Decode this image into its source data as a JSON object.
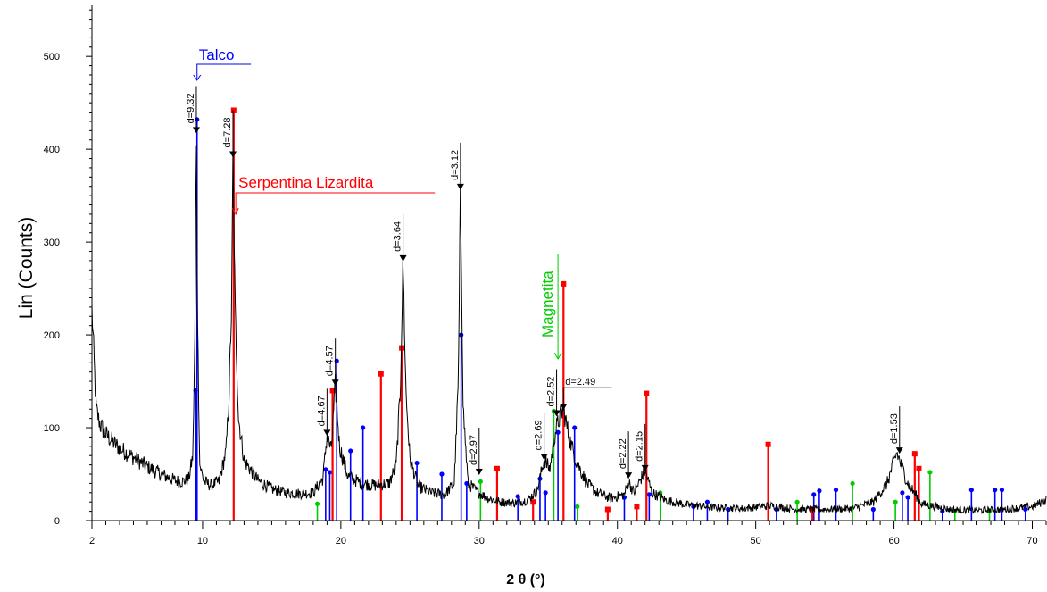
{
  "chart_data": {
    "type": "line",
    "title": "",
    "xlabel": "2 θ (°)",
    "ylabel": "Lin (Counts)",
    "xlim": [
      2,
      71
    ],
    "ylim": [
      0,
      555
    ],
    "x_ticks": [
      2,
      10,
      20,
      30,
      40,
      50,
      60,
      70
    ],
    "y_ticks": [
      0,
      100,
      200,
      300,
      400,
      500
    ],
    "grid": false,
    "colors": {
      "pattern": "#000000",
      "talco": "#0000ff",
      "serpentina": "#ff0000",
      "magnetita": "#00cc00"
    },
    "pattern_anchors": [
      [
        2.0,
        228
      ],
      [
        2.3,
        120
      ],
      [
        2.6,
        103
      ],
      [
        3,
        93
      ],
      [
        3.5,
        85
      ],
      [
        4,
        78
      ],
      [
        5,
        68
      ],
      [
        6,
        58
      ],
      [
        7,
        50
      ],
      [
        8,
        43
      ],
      [
        8.6,
        42
      ],
      [
        9.0,
        45
      ],
      [
        9.3,
        70
      ],
      [
        9.45,
        200
      ],
      [
        9.55,
        418
      ],
      [
        9.65,
        200
      ],
      [
        9.8,
        60
      ],
      [
        10.1,
        42
      ],
      [
        10.6,
        38
      ],
      [
        11.2,
        42
      ],
      [
        11.7,
        75
      ],
      [
        11.9,
        130
      ],
      [
        12.1,
        230
      ],
      [
        12.2,
        392
      ],
      [
        12.35,
        230
      ],
      [
        12.6,
        110
      ],
      [
        13,
        65
      ],
      [
        14,
        43
      ],
      [
        15,
        34
      ],
      [
        16,
        30
      ],
      [
        17,
        29
      ],
      [
        18,
        30
      ],
      [
        18.7,
        45
      ],
      [
        19.0,
        92
      ],
      [
        19.3,
        75
      ],
      [
        19.6,
        146
      ],
      [
        19.9,
        80
      ],
      [
        20.5,
        48
      ],
      [
        21.5,
        40
      ],
      [
        22.5,
        38
      ],
      [
        23.5,
        40
      ],
      [
        24.0,
        60
      ],
      [
        24.3,
        140
      ],
      [
        24.5,
        280
      ],
      [
        24.7,
        140
      ],
      [
        25.0,
        65
      ],
      [
        25.6,
        37
      ],
      [
        26.5,
        30
      ],
      [
        27.5,
        28
      ],
      [
        28.2,
        40
      ],
      [
        28.5,
        150
      ],
      [
        28.65,
        357
      ],
      [
        28.85,
        120
      ],
      [
        29.2,
        40
      ],
      [
        29.8,
        32
      ],
      [
        30.5,
        25
      ],
      [
        31.5,
        20
      ],
      [
        32.5,
        19
      ],
      [
        33.5,
        22
      ],
      [
        34.2,
        32
      ],
      [
        34.7,
        66
      ],
      [
        35.1,
        55
      ],
      [
        35.5,
        95
      ],
      [
        35.8,
        110
      ],
      [
        36.1,
        120
      ],
      [
        36.5,
        90
      ],
      [
        37.0,
        65
      ],
      [
        37.8,
        40
      ],
      [
        38.5,
        30
      ],
      [
        39.5,
        24
      ],
      [
        40.5,
        28
      ],
      [
        40.8,
        42
      ],
      [
        41.2,
        30
      ],
      [
        42.0,
        54
      ],
      [
        42.5,
        30
      ],
      [
        43.5,
        22
      ],
      [
        45,
        17
      ],
      [
        47,
        14
      ],
      [
        49,
        13
      ],
      [
        51,
        16
      ],
      [
        53,
        12
      ],
      [
        55,
        12
      ],
      [
        57,
        13
      ],
      [
        58.5,
        20
      ],
      [
        59.5,
        40
      ],
      [
        60.2,
        73
      ],
      [
        61.0,
        40
      ],
      [
        62,
        18
      ],
      [
        64,
        12
      ],
      [
        66,
        11
      ],
      [
        68,
        12
      ],
      [
        70,
        15
      ],
      [
        71,
        22
      ]
    ],
    "d_spacings": [
      {
        "label": "d=9.32",
        "x": 9.55,
        "y": 418
      },
      {
        "label": "d=7.28",
        "x": 12.2,
        "y": 392
      },
      {
        "label": "d=4.67",
        "x": 19.0,
        "y": 92
      },
      {
        "label": "d=4.57",
        "x": 19.6,
        "y": 146
      },
      {
        "label": "d=3.64",
        "x": 24.5,
        "y": 280
      },
      {
        "label": "d=3.12",
        "x": 28.65,
        "y": 357
      },
      {
        "label": "d=2.97",
        "x": 30.0,
        "y": 50
      },
      {
        "label": "d=2.69",
        "x": 34.7,
        "y": 66
      },
      {
        "label": "d=2.52",
        "x": 35.6,
        "y": 113
      },
      {
        "label": "d=2.49",
        "x": 36.1,
        "y": 120
      },
      {
        "label": "d=2.22",
        "x": 40.8,
        "y": 46
      },
      {
        "label": "d=2.15",
        "x": 42.0,
        "y": 54
      },
      {
        "label": "d=1.53",
        "x": 60.4,
        "y": 73
      }
    ],
    "series": [
      {
        "name": "Talco",
        "stick_values": [
          [
            9.5,
            140
          ],
          [
            9.6,
            432
          ],
          [
            18.9,
            55
          ],
          [
            19.2,
            52
          ],
          [
            19.7,
            172
          ],
          [
            20.7,
            75
          ],
          [
            21.6,
            100
          ],
          [
            25.5,
            62
          ],
          [
            27.3,
            50
          ],
          [
            28.7,
            200
          ],
          [
            29.1,
            40
          ],
          [
            32.8,
            26
          ],
          [
            34.4,
            45
          ],
          [
            34.8,
            30
          ],
          [
            35.7,
            95
          ],
          [
            36.9,
            100
          ],
          [
            40.5,
            25
          ],
          [
            42.3,
            28
          ],
          [
            45.5,
            15
          ],
          [
            46.5,
            20
          ],
          [
            48,
            12
          ],
          [
            51.5,
            12
          ],
          [
            54.2,
            28
          ],
          [
            54.6,
            32
          ],
          [
            55.8,
            33
          ],
          [
            58.5,
            12
          ],
          [
            60.6,
            30
          ],
          [
            61.0,
            25
          ],
          [
            63.5,
            10
          ],
          [
            65.6,
            33
          ],
          [
            67.3,
            33
          ],
          [
            67.8,
            33
          ],
          [
            69.5,
            12
          ]
        ]
      },
      {
        "name": "Serpentina Lizardita",
        "stick_values": [
          [
            12.25,
            442
          ],
          [
            19.4,
            140
          ],
          [
            22.9,
            158
          ],
          [
            24.4,
            186
          ],
          [
            31.3,
            56
          ],
          [
            33.9,
            20
          ],
          [
            36.1,
            255
          ],
          [
            39.3,
            12
          ],
          [
            41.4,
            15
          ],
          [
            42.1,
            137
          ],
          [
            50.9,
            82
          ],
          [
            54.1,
            12
          ],
          [
            61.5,
            72
          ],
          [
            61.8,
            56
          ]
        ]
      },
      {
        "name": "Magnetita",
        "stick_values": [
          [
            18.3,
            18
          ],
          [
            30.1,
            42
          ],
          [
            35.4,
            118
          ],
          [
            37.1,
            15
          ],
          [
            43.1,
            30
          ],
          [
            53.0,
            20
          ],
          [
            57.0,
            40
          ],
          [
            60.1,
            20
          ],
          [
            62.6,
            52
          ],
          [
            64.4,
            10
          ],
          [
            66.9,
            10
          ]
        ]
      }
    ]
  }
}
